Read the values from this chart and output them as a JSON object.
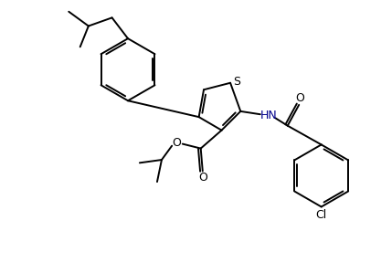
{
  "bg_color": "#ffffff",
  "line_color": "#000000",
  "s_color": "#000000",
  "hn_color": "#00008b",
  "o_color": "#000000",
  "cl_color": "#000000",
  "line_width": 1.4,
  "figsize": [
    4.17,
    2.99
  ],
  "dpi": 100,
  "xlim": [
    0,
    10
  ],
  "ylim": [
    0,
    7.17
  ]
}
